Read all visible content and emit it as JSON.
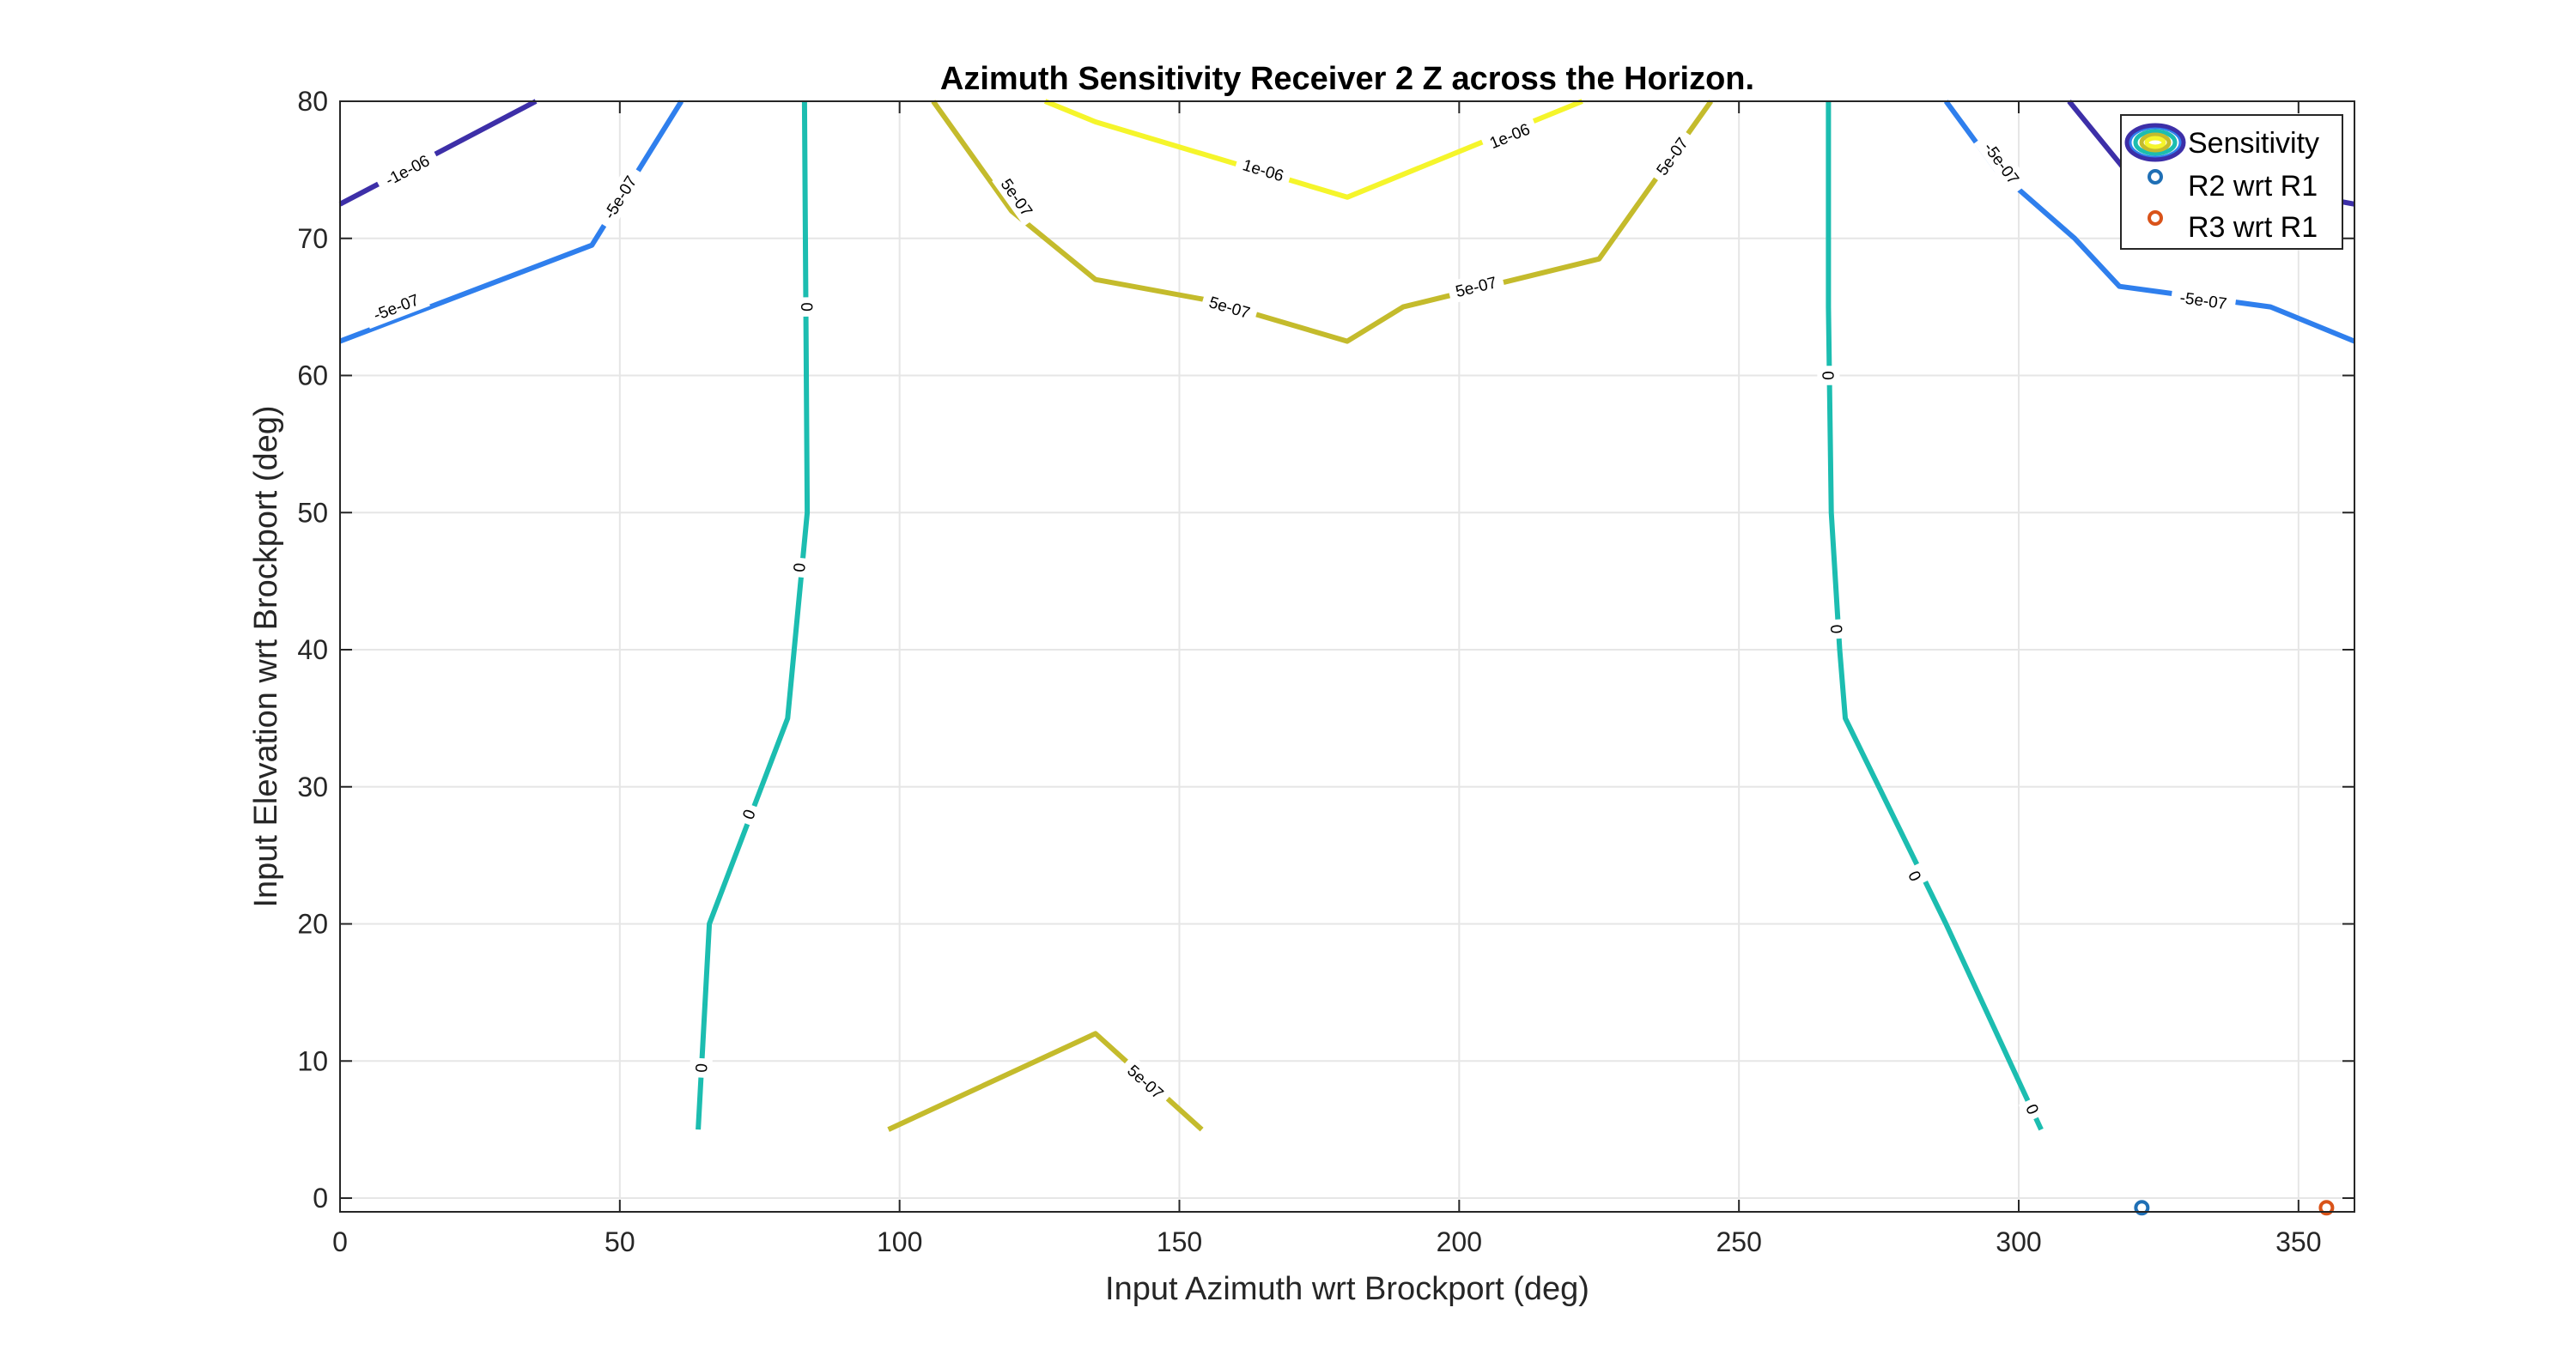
{
  "chart_data": {
    "type": "contour",
    "title": "Azimuth Sensitivity Receiver 2 Z across the Horizon.",
    "xlabel": "Input Azimuth wrt Brockport (deg)",
    "ylabel": "Input Elevation wrt Brockport (deg)",
    "xlim": [
      0,
      360
    ],
    "ylim": [
      -1,
      80
    ],
    "xticks": [
      0,
      50,
      100,
      150,
      200,
      250,
      300,
      350
    ],
    "yticks": [
      0,
      10,
      20,
      30,
      40,
      50,
      60,
      70,
      80
    ],
    "grid": true,
    "legend": {
      "placement": "top-right",
      "entries": [
        "Sensitivity",
        "R2 wrt R1",
        "R3 wrt R1"
      ]
    },
    "contours": [
      {
        "level": "-1e-06",
        "color": "#3d2fa8",
        "segments": [
          [
            [
              0,
              72.5
            ],
            [
              35,
              80
            ]
          ],
          [
            [
              309,
              80
            ],
            [
              319,
              75
            ]
          ],
          [
            [
              340,
              74
            ],
            [
              360,
              72.5
            ]
          ]
        ],
        "labels": [
          {
            "x": 12,
            "y": 75
          }
        ]
      },
      {
        "level": "-5e-07",
        "color": "#2f7fed",
        "segments": [
          [
            [
              0,
              62.5
            ],
            [
              45,
              69.5
            ],
            [
              61,
              80
            ]
          ],
          [
            [
              287,
              80
            ],
            [
              296,
              75
            ],
            [
              310,
              70
            ],
            [
              318,
              66.5
            ],
            [
              345,
              65
            ],
            [
              360,
              62.5
            ]
          ]
        ],
        "labels": [
          {
            "x": 10,
            "y": 65
          },
          {
            "x": 50,
            "y": 73
          },
          {
            "x": 297,
            "y": 75.5
          },
          {
            "x": 333,
            "y": 65.5
          }
        ]
      },
      {
        "level": "0",
        "color": "#1cbdb0",
        "segments": [
          [
            [
              64,
              5
            ],
            [
              66,
              20
            ],
            [
              80,
              35
            ],
            [
              83.5,
              50
            ],
            [
              83,
              80
            ]
          ],
          [
            [
              266,
              80
            ],
            [
              266,
              65
            ],
            [
              266.5,
              50
            ],
            [
              268,
              40
            ],
            [
              269,
              35
            ],
            [
              287,
              20
            ],
            [
              304,
              5
            ]
          ]
        ],
        "labels": [
          {
            "x": 83.5,
            "y": 65
          },
          {
            "x": 82,
            "y": 46
          },
          {
            "x": 73,
            "y": 28
          },
          {
            "x": 64.5,
            "y": 9.5
          },
          {
            "x": 266,
            "y": 60
          },
          {
            "x": 267.5,
            "y": 41.5
          },
          {
            "x": 281.5,
            "y": 23.5
          },
          {
            "x": 302.5,
            "y": 6.5
          }
        ]
      },
      {
        "level": "5e-07",
        "color": "#c4bb2c",
        "segments": [
          [
            [
              106,
              80
            ],
            [
              120,
              72
            ],
            [
              135,
              67
            ],
            [
              155,
              65.5
            ],
            [
              180,
              62.5
            ],
            [
              190,
              65
            ],
            [
              225,
              68.5
            ],
            [
              245,
              80
            ]
          ],
          [
            [
              98,
              5
            ],
            [
              135,
              12
            ],
            [
              154,
              5
            ]
          ]
        ],
        "labels": [
          {
            "x": 121,
            "y": 73
          },
          {
            "x": 159,
            "y": 65
          },
          {
            "x": 203,
            "y": 66.5
          },
          {
            "x": 238,
            "y": 76
          },
          {
            "x": 144,
            "y": 8.5
          }
        ]
      },
      {
        "level": "1e-06",
        "color": "#f5f52b",
        "segments": [
          [
            [
              126,
              80
            ],
            [
              135,
              78.5
            ],
            [
              180,
              73
            ],
            [
              222,
              80
            ]
          ]
        ],
        "labels": [
          {
            "x": 165,
            "y": 75
          },
          {
            "x": 209,
            "y": 77.5
          }
        ]
      }
    ],
    "points": [
      {
        "name": "R2 wrt R1",
        "x": 322,
        "y": -0.7,
        "color": "#1f6fb5"
      },
      {
        "name": "R3 wrt R1",
        "x": 355,
        "y": -0.7,
        "color": "#d95319"
      }
    ]
  }
}
